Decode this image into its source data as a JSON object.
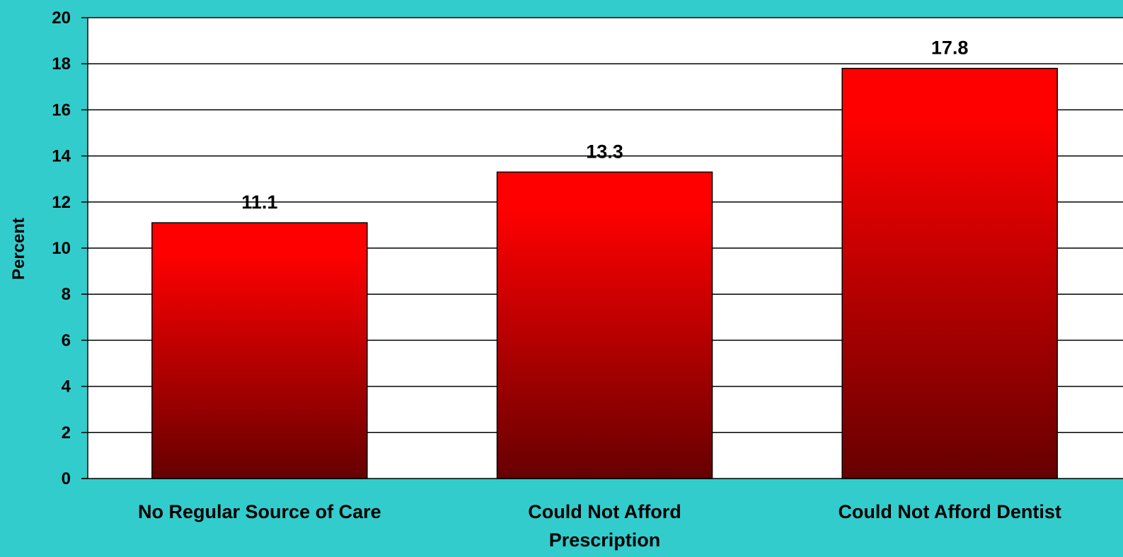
{
  "chart_data": {
    "type": "bar",
    "title": "",
    "ylabel": "Percent",
    "xlabel": "",
    "categories": [
      [
        "No Regular Source of Care"
      ],
      [
        "Could Not Afford",
        "Prescription"
      ],
      [
        "Could Not Afford Dentist"
      ]
    ],
    "values": [
      11.1,
      13.3,
      17.8
    ],
    "data_labels": [
      "11.1",
      "13.3",
      "17.8"
    ],
    "ylim": [
      0,
      20
    ],
    "yticks": [
      0,
      2,
      4,
      6,
      8,
      10,
      12,
      14,
      16,
      18,
      20
    ],
    "grid": true,
    "legend": "none"
  },
  "colors": {
    "background": "#33CCCC",
    "plot_area": "#FFFFFF",
    "bar_top": "#FF0000",
    "bar_bottom": "#660000",
    "gridline": "#000000"
  }
}
